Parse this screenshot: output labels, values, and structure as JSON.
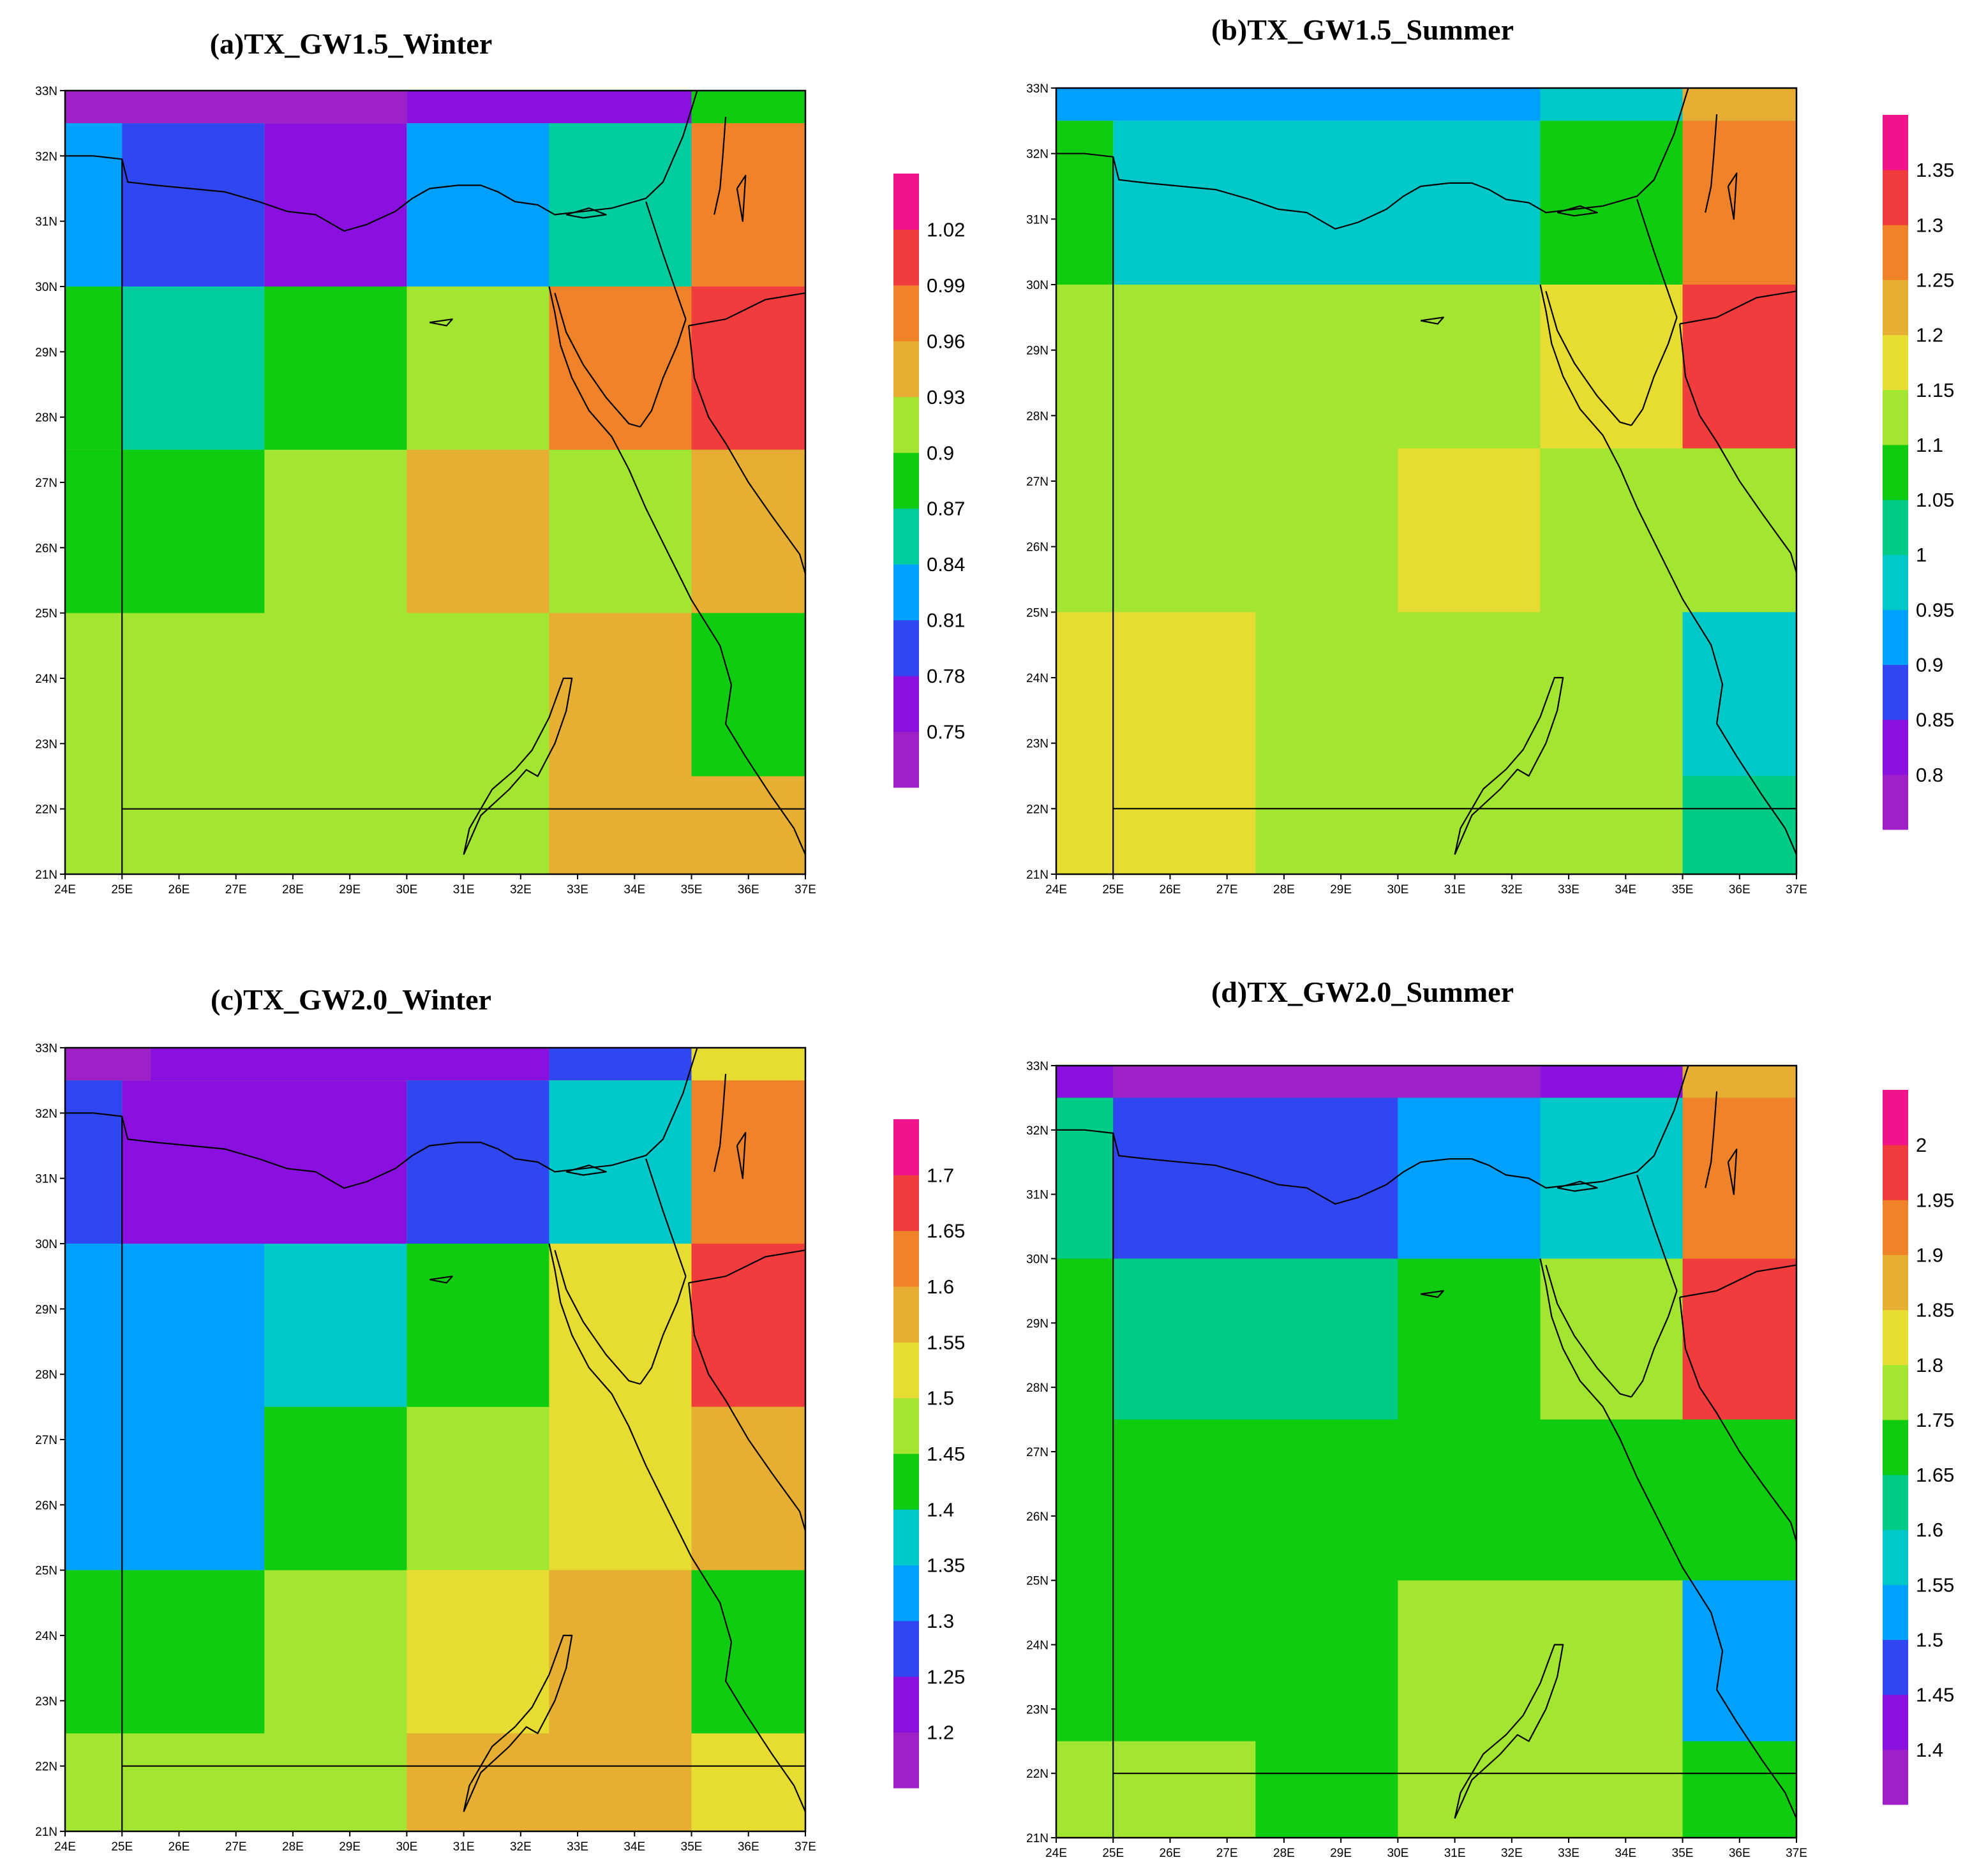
{
  "figure": {
    "xticks": [
      "24E",
      "25E",
      "26E",
      "27E",
      "28E",
      "29E",
      "30E",
      "31E",
      "32E",
      "33E",
      "34E",
      "35E",
      "36E",
      "37E"
    ],
    "yticks": [
      "21N",
      "22N",
      "23N",
      "24N",
      "25N",
      "26N",
      "27N",
      "28N",
      "29N",
      "30N",
      "31N",
      "32N",
      "33N"
    ]
  },
  "panels": [
    {
      "title": "(a)TX_GW1.5_Winter",
      "colorbar": {
        "colors": [
          "#a020c8",
          "#8a10e0",
          "#2f46f0",
          "#00a0ff",
          "#00cca0",
          "#10cc10",
          "#a2e632",
          "#e6ae32",
          "#f0822a",
          "#f03c3c",
          "#f0148c"
        ],
        "labels": [
          "0.75",
          "0.78",
          "0.81",
          "0.84",
          "0.87",
          "0.9",
          "0.93",
          "0.96",
          "0.99",
          "1.02"
        ]
      },
      "chart_data": {
        "type": "heatmap",
        "x_range": [
          24,
          37
        ],
        "y_range": [
          21,
          33
        ],
        "cells": [
          {
            "x": [
              24,
              37
            ],
            "y": [
              21,
              33
            ],
            "color_index": 6
          },
          {
            "x": [
              24,
              30
            ],
            "y": [
              32.5,
              33
            ],
            "color_index": 0
          },
          {
            "x": [
              30,
              35
            ],
            "y": [
              32.5,
              33
            ],
            "color_index": 1
          },
          {
            "x": [
              35,
              37
            ],
            "y": [
              32.5,
              33
            ],
            "color_index": 5
          },
          {
            "x": [
              24,
              25
            ],
            "y": [
              30,
              32.5
            ],
            "color_index": 3
          },
          {
            "x": [
              25,
              27.5
            ],
            "y": [
              30,
              32.5
            ],
            "color_index": 2
          },
          {
            "x": [
              27.5,
              30
            ],
            "y": [
              30,
              32.5
            ],
            "color_index": 1
          },
          {
            "x": [
              30,
              32.5
            ],
            "y": [
              30,
              32.5
            ],
            "color_index": 3
          },
          {
            "x": [
              32.5,
              35
            ],
            "y": [
              30,
              32.5
            ],
            "color_index": 4
          },
          {
            "x": [
              35,
              37
            ],
            "y": [
              30,
              32.5
            ],
            "color_index": 8
          },
          {
            "x": [
              24,
              25
            ],
            "y": [
              27.5,
              30
            ],
            "color_index": 5
          },
          {
            "x": [
              25,
              27.5
            ],
            "y": [
              27.5,
              30
            ],
            "color_index": 4
          },
          {
            "x": [
              27.5,
              30
            ],
            "y": [
              27.5,
              30
            ],
            "color_index": 5
          },
          {
            "x": [
              32.5,
              35
            ],
            "y": [
              27.5,
              30
            ],
            "color_index": 8
          },
          {
            "x": [
              35,
              37
            ],
            "y": [
              27.5,
              30
            ],
            "color_index": 9
          },
          {
            "x": [
              24,
              27.5
            ],
            "y": [
              25,
              27.5
            ],
            "color_index": 5
          },
          {
            "x": [
              30,
              32.5
            ],
            "y": [
              25,
              27.5
            ],
            "color_index": 7
          },
          {
            "x": [
              35,
              37
            ],
            "y": [
              25,
              27.5
            ],
            "color_index": 7
          },
          {
            "x": [
              32.5,
              35
            ],
            "y": [
              21,
              25
            ],
            "color_index": 7
          },
          {
            "x": [
              35,
              37
            ],
            "y": [
              22.5,
              25
            ],
            "color_index": 5
          },
          {
            "x": [
              35,
              37
            ],
            "y": [
              21,
              22.5
            ],
            "color_index": 7
          }
        ]
      }
    },
    {
      "title": "(b)TX_GW1.5_Summer",
      "colorbar": {
        "colors": [
          "#a020c8",
          "#8a10e0",
          "#2f46f0",
          "#00a0ff",
          "#00c8c8",
          "#00cc88",
          "#10cc10",
          "#a2e632",
          "#e6dc32",
          "#e6ae32",
          "#f0822a",
          "#f03c3c",
          "#f0148c"
        ],
        "labels": [
          "0.8",
          "0.85",
          "0.9",
          "0.95",
          "1",
          "1.05",
          "1.1",
          "1.15",
          "1.2",
          "1.25",
          "1.3",
          "1.35"
        ]
      },
      "chart_data": {
        "type": "heatmap",
        "x_range": [
          24,
          37
        ],
        "y_range": [
          21,
          33
        ],
        "cells": [
          {
            "x": [
              24,
              37
            ],
            "y": [
              21,
              33
            ],
            "color_index": 7
          },
          {
            "x": [
              24,
              32.5
            ],
            "y": [
              32.5,
              33
            ],
            "color_index": 3
          },
          {
            "x": [
              32.5,
              35
            ],
            "y": [
              32.5,
              33
            ],
            "color_index": 4
          },
          {
            "x": [
              35,
              37
            ],
            "y": [
              32.5,
              33
            ],
            "color_index": 9
          },
          {
            "x": [
              24,
              25
            ],
            "y": [
              30,
              32.5
            ],
            "color_index": 6
          },
          {
            "x": [
              25,
              32.5
            ],
            "y": [
              30,
              32.5
            ],
            "color_index": 4
          },
          {
            "x": [
              32.5,
              35
            ],
            "y": [
              30,
              32.5
            ],
            "color_index": 6
          },
          {
            "x": [
              35,
              37
            ],
            "y": [
              30,
              32.5
            ],
            "color_index": 10
          },
          {
            "x": [
              32.5,
              35
            ],
            "y": [
              27.5,
              30
            ],
            "color_index": 8
          },
          {
            "x": [
              35,
              37
            ],
            "y": [
              27.5,
              30
            ],
            "color_index": 11
          },
          {
            "x": [
              30,
              32.5
            ],
            "y": [
              25,
              27.5
            ],
            "color_index": 8
          },
          {
            "x": [
              24,
              27.5
            ],
            "y": [
              21,
              25
            ],
            "color_index": 8
          },
          {
            "x": [
              35,
              37
            ],
            "y": [
              22.5,
              25
            ],
            "color_index": 4
          },
          {
            "x": [
              35,
              37
            ],
            "y": [
              21,
              22.5
            ],
            "color_index": 5
          }
        ]
      }
    },
    {
      "title": "(c)TX_GW2.0_Winter",
      "colorbar": {
        "colors": [
          "#a020c8",
          "#8a10e0",
          "#2f46f0",
          "#00a0ff",
          "#00c8c8",
          "#10cc10",
          "#a2e632",
          "#e6dc32",
          "#e6ae32",
          "#f0822a",
          "#f03c3c",
          "#f0148c"
        ],
        "labels": [
          "1.2",
          "1.25",
          "1.3",
          "1.35",
          "1.4",
          "1.45",
          "1.5",
          "1.55",
          "1.6",
          "1.65",
          "1.7"
        ]
      },
      "chart_data": {
        "type": "heatmap",
        "x_range": [
          24,
          37
        ],
        "y_range": [
          21,
          33
        ],
        "cells": [
          {
            "x": [
              24,
              37
            ],
            "y": [
              21,
              33
            ],
            "color_index": 6
          },
          {
            "x": [
              24,
              25.5
            ],
            "y": [
              32.5,
              33
            ],
            "color_index": 0
          },
          {
            "x": [
              25.5,
              32.5
            ],
            "y": [
              32.5,
              33
            ],
            "color_index": 1
          },
          {
            "x": [
              32.5,
              35
            ],
            "y": [
              32.5,
              33
            ],
            "color_index": 2
          },
          {
            "x": [
              35,
              37
            ],
            "y": [
              32.5,
              33
            ],
            "color_index": 7
          },
          {
            "x": [
              24,
              25
            ],
            "y": [
              30,
              32.5
            ],
            "color_index": 2
          },
          {
            "x": [
              25,
              30
            ],
            "y": [
              30,
              32.5
            ],
            "color_index": 1
          },
          {
            "x": [
              30,
              32.5
            ],
            "y": [
              30,
              32.5
            ],
            "color_index": 2
          },
          {
            "x": [
              32.5,
              35
            ],
            "y": [
              30,
              32.5
            ],
            "color_index": 4
          },
          {
            "x": [
              35,
              37
            ],
            "y": [
              30,
              32.5
            ],
            "color_index": 9
          },
          {
            "x": [
              24,
              27.5
            ],
            "y": [
              25,
              30
            ],
            "color_index": 3
          },
          {
            "x": [
              27.5,
              30
            ],
            "y": [
              27.5,
              30
            ],
            "color_index": 4
          },
          {
            "x": [
              30,
              32.5
            ],
            "y": [
              27.5,
              30
            ],
            "color_index": 5
          },
          {
            "x": [
              32.5,
              35
            ],
            "y": [
              25,
              30
            ],
            "color_index": 7
          },
          {
            "x": [
              35,
              37
            ],
            "y": [
              27.5,
              30
            ],
            "color_index": 10
          },
          {
            "x": [
              27.5,
              30
            ],
            "y": [
              25,
              27.5
            ],
            "color_index": 5
          },
          {
            "x": [
              35,
              37
            ],
            "y": [
              25,
              27.5
            ],
            "color_index": 8
          },
          {
            "x": [
              24,
              27.5
            ],
            "y": [
              22.5,
              25
            ],
            "color_index": 5
          },
          {
            "x": [
              30,
              32.5
            ],
            "y": [
              22.5,
              25
            ],
            "color_index": 7
          },
          {
            "x": [
              32.5,
              35
            ],
            "y": [
              22.5,
              25
            ],
            "color_index": 8
          },
          {
            "x": [
              35,
              37
            ],
            "y": [
              22.5,
              25
            ],
            "color_index": 5
          },
          {
            "x": [
              30,
              35
            ],
            "y": [
              21,
              22.5
            ],
            "color_index": 8
          },
          {
            "x": [
              35,
              37
            ],
            "y": [
              21,
              22.5
            ],
            "color_index": 7
          }
        ]
      }
    },
    {
      "title": "(d)TX_GW2.0_Summer",
      "colorbar": {
        "colors": [
          "#a020c8",
          "#8a10e0",
          "#2f46f0",
          "#00a0ff",
          "#00c8c8",
          "#00cc88",
          "#10cc10",
          "#a2e632",
          "#e6dc32",
          "#e6ae32",
          "#f0822a",
          "#f03c3c",
          "#f0148c"
        ],
        "labels": [
          "1.4",
          "1.45",
          "1.5",
          "1.55",
          "1.6",
          "1.65",
          "1.75",
          "1.8",
          "1.85",
          "1.9",
          "1.95",
          "2"
        ]
      },
      "chart_data": {
        "type": "heatmap",
        "x_range": [
          24,
          37
        ],
        "y_range": [
          21,
          33
        ],
        "cells": [
          {
            "x": [
              24,
              37
            ],
            "y": [
              21,
              33
            ],
            "color_index": 6
          },
          {
            "x": [
              24,
              25
            ],
            "y": [
              32.5,
              33
            ],
            "color_index": 1
          },
          {
            "x": [
              25,
              32.5
            ],
            "y": [
              32.5,
              33
            ],
            "color_index": 0
          },
          {
            "x": [
              32.5,
              35
            ],
            "y": [
              32.5,
              33
            ],
            "color_index": 1
          },
          {
            "x": [
              35,
              37
            ],
            "y": [
              32.5,
              33
            ],
            "color_index": 9
          },
          {
            "x": [
              24,
              25
            ],
            "y": [
              30,
              32.5
            ],
            "color_index": 5
          },
          {
            "x": [
              25,
              30
            ],
            "y": [
              30,
              32.5
            ],
            "color_index": 2
          },
          {
            "x": [
              30,
              32.5
            ],
            "y": [
              30,
              32.5
            ],
            "color_index": 3
          },
          {
            "x": [
              32.5,
              35
            ],
            "y": [
              30,
              32.5
            ],
            "color_index": 4
          },
          {
            "x": [
              35,
              37
            ],
            "y": [
              30,
              32.5
            ],
            "color_index": 10
          },
          {
            "x": [
              25,
              30
            ],
            "y": [
              27.5,
              30
            ],
            "color_index": 5
          },
          {
            "x": [
              32.5,
              35
            ],
            "y": [
              27.5,
              30
            ],
            "color_index": 7
          },
          {
            "x": [
              35,
              37
            ],
            "y": [
              27.5,
              30
            ],
            "color_index": 11
          },
          {
            "x": [
              30,
              35
            ],
            "y": [
              21,
              25
            ],
            "color_index": 7
          },
          {
            "x": [
              35,
              37
            ],
            "y": [
              22.5,
              25
            ],
            "color_index": 3
          },
          {
            "x": [
              24,
              27.5
            ],
            "y": [
              21,
              22.5
            ],
            "color_index": 7
          }
        ]
      }
    }
  ]
}
